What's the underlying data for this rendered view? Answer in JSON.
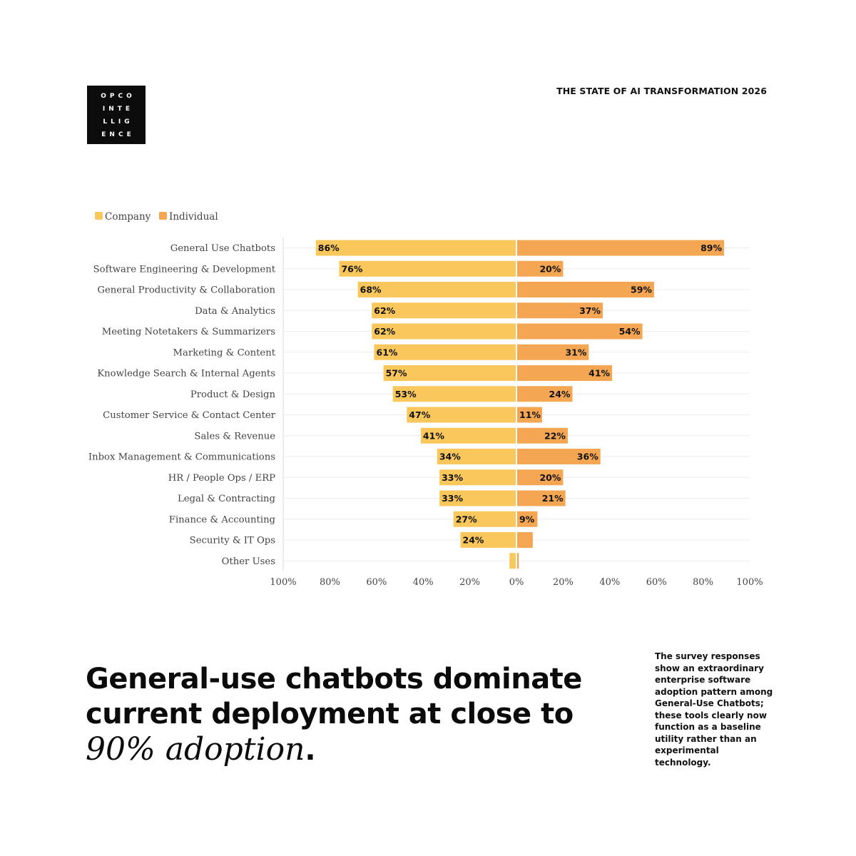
{
  "brand": {
    "logo_lines": [
      "OPCO",
      "INTE",
      "LLIG",
      "ENCE"
    ]
  },
  "header": {
    "report_title": "THE STATE OF AI TRANSFORMATION 2026"
  },
  "colors": {
    "company": "#F9C75C",
    "individual": "#F4A653",
    "gridline": "#ECECEC",
    "axis": "#D9D9D9",
    "zero_line": "#FFFFFF"
  },
  "chart_data": {
    "type": "bar",
    "orientation": "horizontal-diverging",
    "title": "",
    "categories": [
      "General Use Chatbots",
      "Software Engineering & Development",
      "General Productivity & Collaboration",
      "Data & Analytics",
      "Meeting Notetakers & Summarizers",
      "Marketing & Content",
      "Knowledge Search & Internal Agents",
      "Product & Design",
      "Customer Service & Contact Center",
      "Sales & Revenue",
      "Inbox Management & Communications",
      "HR / People Ops / ERP",
      "Legal & Contracting",
      "Finance & Accounting",
      "Security & IT Ops",
      "Other Uses"
    ],
    "series": [
      {
        "name": "Company",
        "direction": "left",
        "values": [
          86,
          76,
          68,
          62,
          62,
          61,
          57,
          53,
          47,
          41,
          34,
          33,
          33,
          27,
          24,
          3
        ],
        "labels": [
          "86%",
          "76%",
          "68%",
          "62%",
          "62%",
          "61%",
          "57%",
          "53%",
          "47%",
          "41%",
          "34%",
          "33%",
          "33%",
          "27%",
          "24%",
          ""
        ]
      },
      {
        "name": "Individual",
        "direction": "right",
        "values": [
          89,
          20,
          59,
          37,
          54,
          31,
          41,
          24,
          11,
          22,
          36,
          20,
          21,
          9,
          7,
          1
        ],
        "labels": [
          "89%",
          "20%",
          "59%",
          "37%",
          "54%",
          "31%",
          "41%",
          "24%",
          "11%",
          "22%",
          "36%",
          "20%",
          "21%",
          "9%",
          "",
          ""
        ]
      }
    ],
    "xlim": [
      -100,
      100
    ],
    "x_ticks": [
      "100%",
      "80%",
      "60%",
      "40%",
      "20%",
      "0%",
      "20%",
      "40%",
      "60%",
      "80%",
      "100%"
    ],
    "legend": [
      "Company",
      "Individual"
    ],
    "legend_position": "top-left",
    "grid": true,
    "xlabel": "",
    "ylabel": ""
  },
  "headline": {
    "line1": "General-use chatbots dominate",
    "line2": "current deployment at close to",
    "emphasis": "90% adoption",
    "end_punct": "."
  },
  "side_note": "The survey responses show an extraordinary enterprise software adoption pattern among General-Use Chatbots; these tools clearly now function as a baseline utility rather than an experimental technology."
}
